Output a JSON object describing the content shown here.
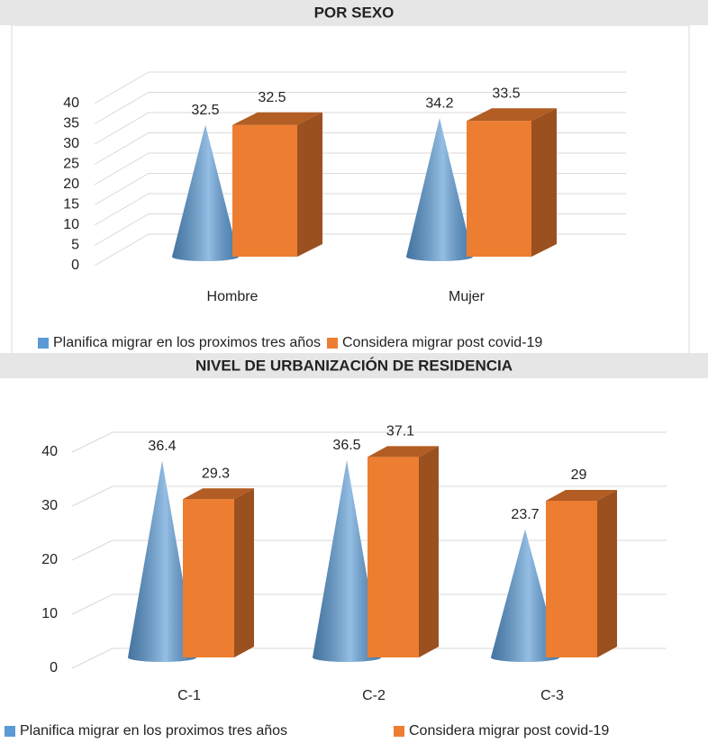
{
  "chart_data": [
    {
      "type": "bar3d",
      "title": "POR SEXO",
      "categories": [
        "Hombre",
        "Mujer"
      ],
      "series": [
        {
          "name": "Planifica migrar en los proximos tres años",
          "color": "#5b9bd5",
          "shape": "cone",
          "values": [
            32.5,
            34.2
          ]
        },
        {
          "name": "Considera migrar post covid-19",
          "color": "#ed7d31",
          "shape": "box",
          "values": [
            32.5,
            33.5
          ]
        }
      ],
      "ylim": [
        0,
        40
      ],
      "yticks": [
        0,
        5,
        10,
        15,
        20,
        25,
        30,
        35,
        40
      ],
      "grid": true,
      "legend": "bottom"
    },
    {
      "type": "bar3d",
      "title": "NIVEL DE URBANIZACIÓN DE RESIDENCIA",
      "categories": [
        "C-1",
        "C-2",
        "C-3"
      ],
      "series": [
        {
          "name": "Planifica migrar en los proximos tres años",
          "color": "#5b9bd5",
          "shape": "cone",
          "values": [
            36.4,
            36.5,
            23.7
          ]
        },
        {
          "name": "Considera migrar post covid-19",
          "color": "#ed7d31",
          "shape": "box",
          "values": [
            29.3,
            37.1,
            29
          ]
        }
      ],
      "ylim": [
        0,
        40
      ],
      "yticks": [
        0,
        10,
        20,
        30,
        40
      ],
      "grid": true,
      "legend": "bottom"
    }
  ]
}
